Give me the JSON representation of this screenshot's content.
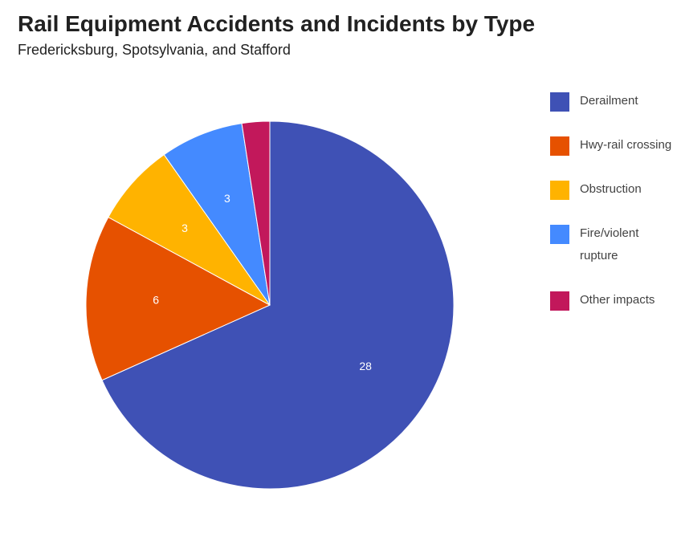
{
  "chart_data": {
    "type": "pie",
    "title": "Rail Equipment Accidents and Incidents by Type",
    "subtitle": "Fredericksburg, Spotsylvania, and Stafford",
    "legend_position": "right",
    "slices": [
      {
        "label": "Derailment",
        "value": 28,
        "color": "#3f51b5",
        "value_label": "28"
      },
      {
        "label": "Hwy-rail crossing",
        "value": 6,
        "color": "#e65100",
        "value_label": "6"
      },
      {
        "label": "Obstruction",
        "value": 3,
        "color": "#ffb300",
        "value_label": "3"
      },
      {
        "label": "Fire/violent rupture",
        "value": 3,
        "color": "#448aff",
        "value_label": "3"
      },
      {
        "label": "Other impacts",
        "value": 1,
        "color": "#c2185b",
        "value_label": ""
      }
    ]
  }
}
